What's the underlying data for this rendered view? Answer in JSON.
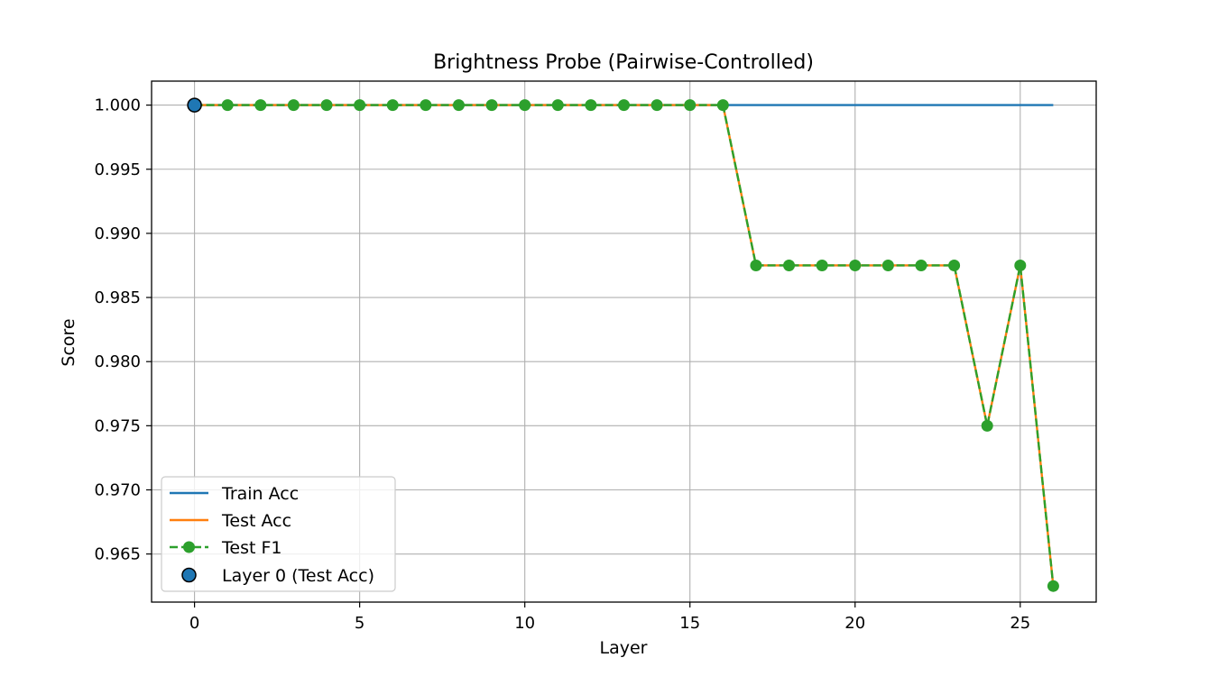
{
  "chart_data": {
    "type": "line",
    "title": "Brightness Probe (Pairwise-Controlled)",
    "xlabel": "Layer",
    "ylabel": "Score",
    "xlim": [
      -1.3,
      27.3
    ],
    "ylim": [
      0.96125,
      1.00187
    ],
    "xticks": [
      0,
      5,
      10,
      15,
      20,
      25
    ],
    "xtick_labels": [
      "0",
      "5",
      "10",
      "15",
      "20",
      "25"
    ],
    "yticks": [
      0.965,
      0.97,
      0.975,
      0.98,
      0.985,
      0.99,
      0.995,
      1.0
    ],
    "ytick_labels": [
      "0.965",
      "0.970",
      "0.975",
      "0.980",
      "0.985",
      "0.990",
      "0.995",
      "1.000"
    ],
    "grid": true,
    "legend_position": "lower-left",
    "x": [
      0,
      1,
      2,
      3,
      4,
      5,
      6,
      7,
      8,
      9,
      10,
      11,
      12,
      13,
      14,
      15,
      16,
      17,
      18,
      19,
      20,
      21,
      22,
      23,
      24,
      25,
      26
    ],
    "series": [
      {
        "name": "Train Acc",
        "style": "solid",
        "marker": "none",
        "color": "#1f77b4",
        "values": [
          1.0,
          1.0,
          1.0,
          1.0,
          1.0,
          1.0,
          1.0,
          1.0,
          1.0,
          1.0,
          1.0,
          1.0,
          1.0,
          1.0,
          1.0,
          1.0,
          1.0,
          1.0,
          1.0,
          1.0,
          1.0,
          1.0,
          1.0,
          1.0,
          1.0,
          1.0,
          1.0
        ]
      },
      {
        "name": "Test Acc",
        "style": "solid",
        "marker": "none",
        "color": "#ff7f0e",
        "values": [
          1.0,
          1.0,
          1.0,
          1.0,
          1.0,
          1.0,
          1.0,
          1.0,
          1.0,
          1.0,
          1.0,
          1.0,
          1.0,
          1.0,
          1.0,
          1.0,
          1.0,
          0.9875,
          0.9875,
          0.9875,
          0.9875,
          0.9875,
          0.9875,
          0.9875,
          0.975,
          0.9875,
          0.9625
        ]
      },
      {
        "name": "Test F1",
        "style": "dashed",
        "marker": "circle",
        "color": "#2ca02c",
        "values": [
          1.0,
          1.0,
          1.0,
          1.0,
          1.0,
          1.0,
          1.0,
          1.0,
          1.0,
          1.0,
          1.0,
          1.0,
          1.0,
          1.0,
          1.0,
          1.0,
          1.0,
          0.9875,
          0.9875,
          0.9875,
          0.9875,
          0.9875,
          0.9875,
          0.9875,
          0.975,
          0.9875,
          0.9625
        ]
      }
    ],
    "highlight_point": {
      "name": "Layer 0 (Test Acc)",
      "x": 0,
      "y": 1.0,
      "color": "#1f77b4"
    }
  }
}
